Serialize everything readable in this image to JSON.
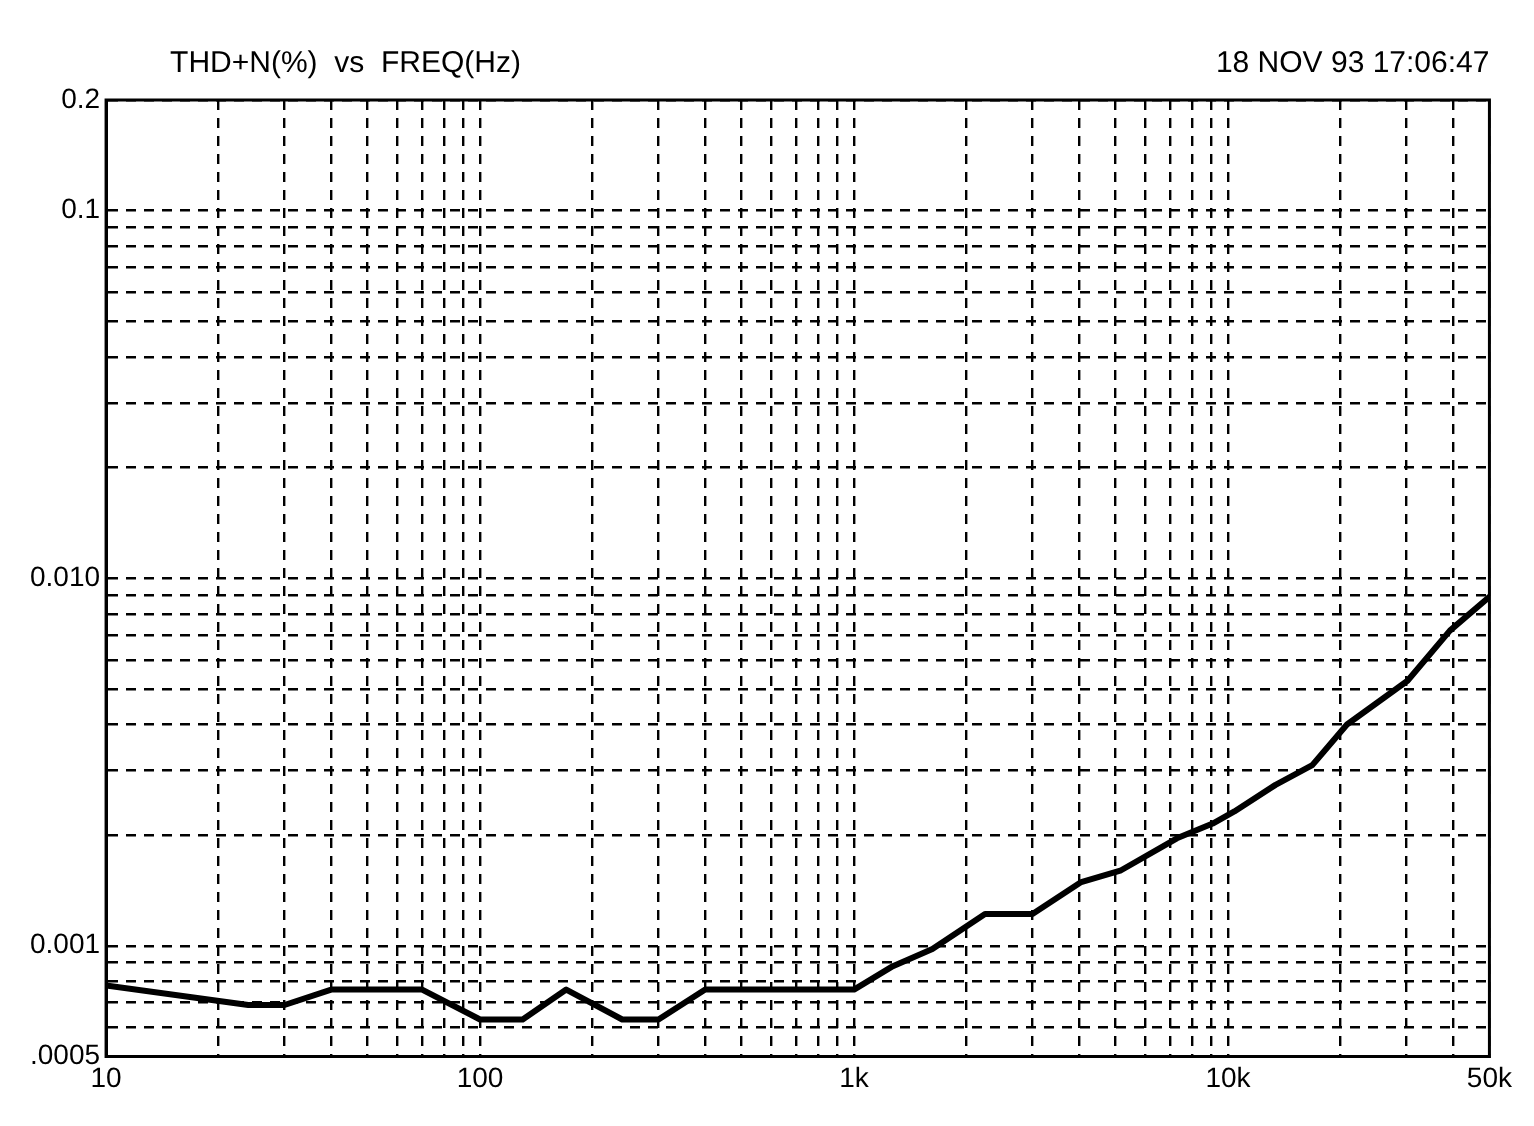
{
  "chart_data": {
    "type": "line",
    "title": "THD+N(%)  vs  FREQ(Hz)",
    "annotations": [
      "18 NOV 93 17:06:47"
    ],
    "series": [
      {
        "color": "#000000",
        "x": [
          10,
          24,
          30,
          40,
          70,
          100,
          130,
          170,
          240,
          300,
          400,
          1000,
          1270,
          1620,
          2240,
          3000,
          4050,
          5150,
          7300,
          9100,
          10400,
          13400,
          16800,
          20800,
          30200,
          39200,
          50000
        ],
        "values": [
          0.00078,
          0.00069,
          0.00069,
          0.00076,
          0.00076,
          0.00063,
          0.00063,
          0.00076,
          0.00063,
          0.00063,
          0.00076,
          0.00076,
          0.00088,
          0.00098,
          0.00122,
          0.00122,
          0.00149,
          0.0016,
          0.00196,
          0.00215,
          0.00232,
          0.00274,
          0.0031,
          0.004,
          0.00526,
          0.0072,
          0.0089
        ]
      }
    ],
    "log": "xy",
    "xlim": [
      10,
      50000
    ],
    "ylim": [
      0.0005,
      0.2
    ],
    "xticks": [
      10,
      {
        "value": 20,
        "label": null
      },
      {
        "value": 30,
        "label": null
      },
      {
        "value": 40,
        "label": null
      },
      {
        "value": 50,
        "label": null
      },
      {
        "value": 60,
        "label": null
      },
      {
        "value": 70,
        "label": null
      },
      {
        "value": 80,
        "label": null
      },
      {
        "value": 90,
        "label": null
      },
      100,
      {
        "value": 200,
        "label": null
      },
      {
        "value": 300,
        "label": null
      },
      {
        "value": 400,
        "label": null
      },
      {
        "value": 500,
        "label": null
      },
      {
        "value": 600,
        "label": null
      },
      {
        "value": 700,
        "label": null
      },
      {
        "value": 800,
        "label": null
      },
      {
        "value": 900,
        "label": null
      },
      {
        "value": 1000,
        "label": "1k"
      },
      {
        "value": 2000,
        "label": null
      },
      {
        "value": 3000,
        "label": null
      },
      {
        "value": 4000,
        "label": null
      },
      {
        "value": 5000,
        "label": null
      },
      {
        "value": 6000,
        "label": null
      },
      {
        "value": 7000,
        "label": null
      },
      {
        "value": 8000,
        "label": null
      },
      {
        "value": 9000,
        "label": null
      },
      {
        "value": 10000,
        "label": "10k"
      },
      {
        "value": 20000,
        "label": null
      },
      {
        "value": 30000,
        "label": null
      },
      {
        "value": 40000,
        "label": null
      },
      {
        "value": 50000,
        "label": "50k"
      }
    ],
    "yticks": [
      {
        "value": 0.0005,
        "label": ".0005"
      },
      {
        "value": 0.0006,
        "label": null
      },
      {
        "value": 0.0007,
        "label": null
      },
      {
        "value": 0.0008,
        "label": null
      },
      {
        "value": 0.0009,
        "label": null
      },
      0.001,
      {
        "value": 0.002,
        "label": null
      },
      {
        "value": 0.003,
        "label": null
      },
      {
        "value": 0.004,
        "label": null
      },
      {
        "value": 0.005,
        "label": null
      },
      {
        "value": 0.006,
        "label": null
      },
      {
        "value": 0.007,
        "label": null
      },
      {
        "value": 0.008,
        "label": null
      },
      {
        "value": 0.009,
        "label": null
      },
      {
        "value": 0.01,
        "label": "0.010"
      },
      {
        "value": 0.02,
        "label": null
      },
      {
        "value": 0.03,
        "label": null
      },
      {
        "value": 0.04,
        "label": null
      },
      {
        "value": 0.05,
        "label": null
      },
      {
        "value": 0.06,
        "label": null
      },
      {
        "value": 0.07,
        "label": null
      },
      {
        "value": 0.08,
        "label": null
      },
      {
        "value": 0.09,
        "label": null
      },
      0.1,
      0.2
    ],
    "grid": true,
    "marker": "none",
    "line_style": "solid",
    "legend": false
  }
}
